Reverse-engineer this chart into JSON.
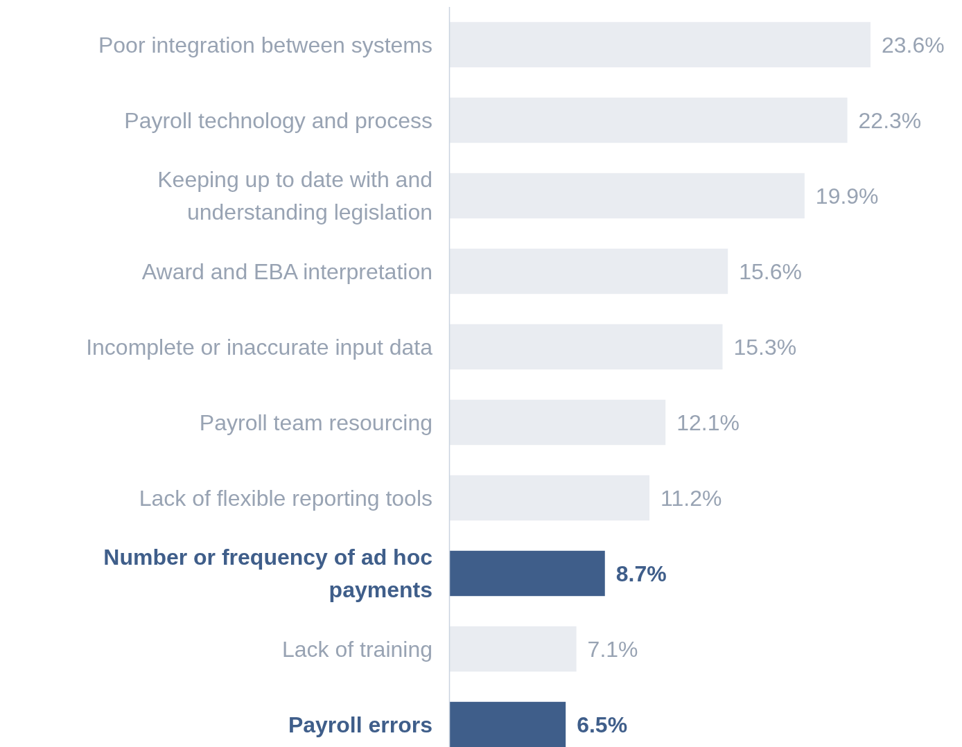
{
  "chart_data": {
    "type": "bar",
    "orientation": "horizontal",
    "categories": [
      "Poor integration between systems",
      "Payroll technology and process",
      "Keeping up to date with and understanding legislation",
      "Award and EBA interpretation",
      "Incomplete or inaccurate input data",
      "Payroll team resourcing",
      "Lack of flexible reporting tools",
      "Number or frequency of ad hoc payments",
      "Lack of training",
      "Payroll errors"
    ],
    "values": [
      23.6,
      22.3,
      19.9,
      15.6,
      15.3,
      12.1,
      11.2,
      8.7,
      7.1,
      6.5
    ],
    "value_labels": [
      "23.6%",
      "22.3%",
      "19.9%",
      "15.6%",
      "15.3%",
      "12.1%",
      "11.2%",
      "8.7%",
      "7.1%",
      "6.5%"
    ],
    "colors": [
      "#e9ecf1",
      "#e9ecf1",
      "#e9ecf1",
      "#e9ecf1",
      "#e9ecf1",
      "#e9ecf1",
      "#e9ecf1",
      "#3f5e8a",
      "#e9ecf1",
      "#3f5e8a"
    ]
  }
}
